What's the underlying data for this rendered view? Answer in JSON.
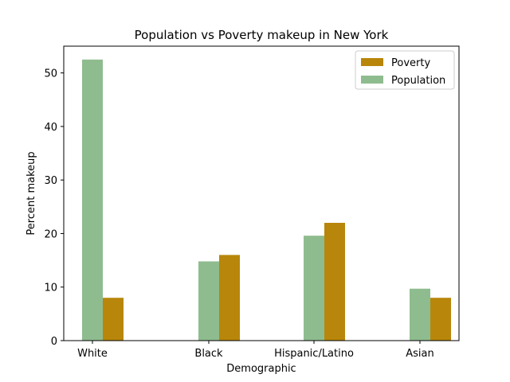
{
  "chart_data": {
    "type": "bar",
    "title": "Population vs Poverty makeup in New York",
    "xlabel": "Demographic",
    "ylabel": "Percent makeup",
    "categories": [
      "White",
      "Black",
      "Hispanic/Latino",
      "Asian"
    ],
    "series": [
      {
        "name": "Population",
        "color": "#8fbc8f",
        "values": [
          52.5,
          14.8,
          19.6,
          9.7
        ]
      },
      {
        "name": "Poverty",
        "color": "#b8860b",
        "values": [
          8.0,
          16.0,
          22.0,
          8.0
        ]
      }
    ],
    "ylim": [
      0,
      55
    ],
    "yticks": [
      0,
      10,
      20,
      30,
      40,
      50
    ],
    "legend": {
      "placement": "top-right",
      "order": [
        "Poverty",
        "Population"
      ]
    },
    "grid": false
  }
}
